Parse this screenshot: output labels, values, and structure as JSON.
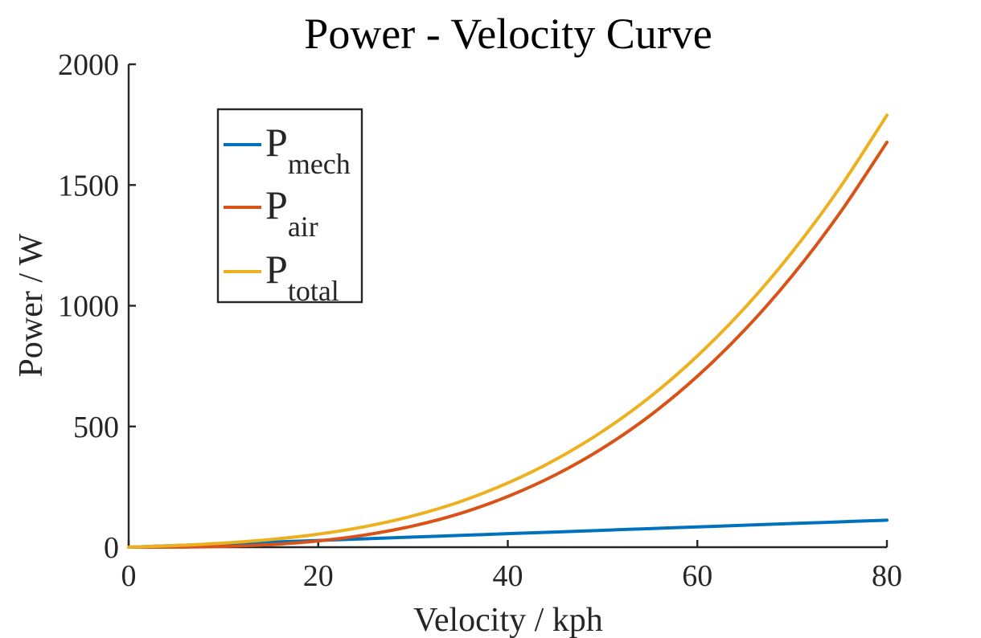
{
  "chart_data": {
    "type": "line",
    "title": "Power - Velocity Curve",
    "xlabel": "Velocity / kph",
    "ylabel": "Power / W",
    "xlim": [
      0,
      80
    ],
    "ylim": [
      0,
      2000
    ],
    "xticks": [
      0,
      20,
      40,
      60,
      80
    ],
    "yticks": [
      0,
      500,
      1000,
      1500,
      2000
    ],
    "grid": false,
    "legend_position": "top-left",
    "x": [
      0,
      5,
      10,
      15,
      20,
      25,
      30,
      35,
      40,
      45,
      50,
      55,
      60,
      65,
      70,
      75,
      80
    ],
    "series": [
      {
        "name": "P",
        "subscript": "mech",
        "color": "#0072BD",
        "values": [
          0,
          7,
          14,
          21,
          28,
          35,
          42,
          49,
          56,
          63,
          70,
          77,
          84,
          91,
          98,
          105,
          112
        ]
      },
      {
        "name": "P",
        "subscript": "air",
        "color": "#D95319",
        "values": [
          0,
          0.4,
          3.3,
          11,
          26,
          51,
          88,
          140,
          210,
          299,
          410,
          545,
          708,
          900,
          1124,
          1382,
          1677
        ]
      },
      {
        "name": "P",
        "subscript": "total",
        "color": "#EDB120",
        "values": [
          0,
          7,
          17,
          32,
          54,
          86,
          130,
          189,
          266,
          362,
          480,
          622,
          792,
          991,
          1222,
          1487,
          1789
        ]
      }
    ]
  }
}
